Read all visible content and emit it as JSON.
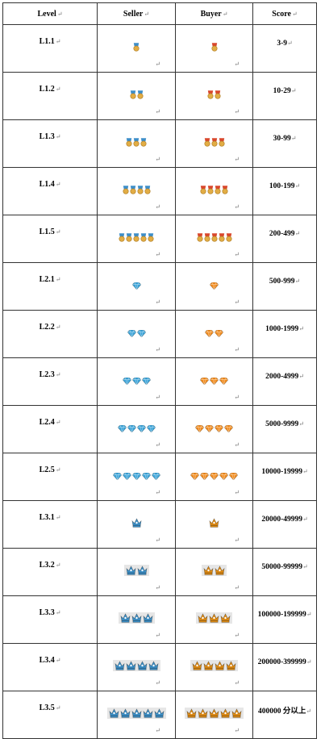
{
  "header": {
    "level": "Level",
    "seller": "Seller",
    "buyer": "Buyer",
    "score": "Score"
  },
  "colors": {
    "seller_medal": "#3d8ec9",
    "buyer_medal": "#d9472b",
    "medal_body": "#e2ad45",
    "seller_diamond": "#3aa3d8",
    "buyer_diamond": "#f08a1c",
    "seller_crown": "#3b8fc7",
    "buyer_crown": "#e08b12"
  },
  "rows": [
    {
      "level": "L1.1",
      "icon": "medal-icon",
      "count": 1,
      "score": "3-9"
    },
    {
      "level": "L1.2",
      "icon": "medal-icon",
      "count": 2,
      "score": "10-29"
    },
    {
      "level": "L1.3",
      "icon": "medal-icon",
      "count": 3,
      "score": "30-99"
    },
    {
      "level": "L1.4",
      "icon": "medal-icon",
      "count": 4,
      "score": "100-199"
    },
    {
      "level": "L1.5",
      "icon": "medal-icon",
      "count": 5,
      "score": "200-499"
    },
    {
      "level": "L2.1",
      "icon": "diamond-icon",
      "count": 1,
      "score": "500-999"
    },
    {
      "level": "L2.2",
      "icon": "diamond-icon",
      "count": 2,
      "score": "1000-1999"
    },
    {
      "level": "L2.3",
      "icon": "diamond-icon",
      "count": 3,
      "score": "2000-4999"
    },
    {
      "level": "L2.4",
      "icon": "diamond-icon",
      "count": 4,
      "score": "5000-9999"
    },
    {
      "level": "L2.5",
      "icon": "diamond-icon",
      "count": 5,
      "score": "10000-19999"
    },
    {
      "level": "L3.1",
      "icon": "crown-icon",
      "count": 1,
      "score": "20000-49999"
    },
    {
      "level": "L3.2",
      "icon": "crown-icon",
      "count": 2,
      "score": "50000-99999"
    },
    {
      "level": "L3.3",
      "icon": "crown-icon",
      "count": 3,
      "score": "100000-199999"
    },
    {
      "level": "L3.4",
      "icon": "crown-icon",
      "count": 4,
      "score": "200000-399999"
    },
    {
      "level": "L3.5",
      "icon": "crown-icon",
      "count": 5,
      "score": "400000 分以上"
    }
  ]
}
